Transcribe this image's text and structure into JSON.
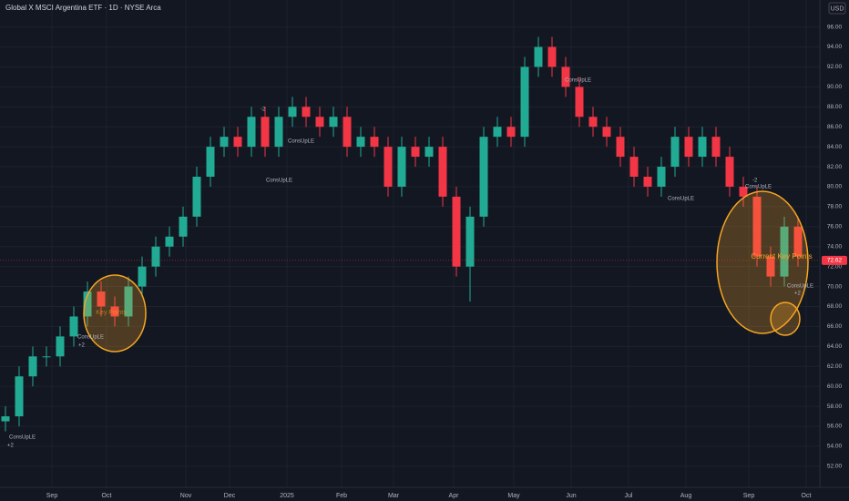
{
  "chart_data": {
    "type": "candlestick",
    "title": "Global X MSCI Argentina ETF · 1D · NYSE Arca",
    "currency": "USD",
    "last_price": 72.62,
    "last_price_label": "72.62",
    "annotations": [
      "Current Key Points",
      "Key Points",
      "ConsUpLE",
      "+2",
      "-2"
    ],
    "up_color": "#22ab94",
    "down_color": "#f23645",
    "grid": true,
    "xlim": [
      0,
      300
    ],
    "xticks": [
      {
        "value": 19,
        "label": "Sep"
      },
      {
        "value": 39,
        "label": "Oct"
      },
      {
        "value": 68,
        "label": "Nov"
      },
      {
        "value": 84,
        "label": "Dec"
      },
      {
        "value": 105,
        "label": "2025"
      },
      {
        "value": 125,
        "label": "Feb"
      },
      {
        "value": 144,
        "label": "Mar"
      },
      {
        "value": 166,
        "label": "Apr"
      },
      {
        "value": 188,
        "label": "May"
      },
      {
        "value": 209,
        "label": "Jun"
      },
      {
        "value": 230,
        "label": "Jul"
      },
      {
        "value": 251,
        "label": "Aug"
      },
      {
        "value": 274,
        "label": "Sep"
      },
      {
        "value": 295,
        "label": "Oct"
      }
    ],
    "ylim": [
      50.8,
      98.7
    ],
    "yticks": [
      {
        "value": 52,
        "label": "52.00"
      },
      {
        "value": 54,
        "label": "54.00"
      },
      {
        "value": 56,
        "label": "56.00"
      },
      {
        "value": 58,
        "label": "58.00"
      },
      {
        "value": 60,
        "label": "60.00"
      },
      {
        "value": 62,
        "label": "62.00"
      },
      {
        "value": 64,
        "label": "64.00"
      },
      {
        "value": 66,
        "label": "66.00"
      },
      {
        "value": 68,
        "label": "68.00"
      },
      {
        "value": 70,
        "label": "70.00"
      },
      {
        "value": 72,
        "label": "72.00"
      },
      {
        "value": 74,
        "label": "74.00"
      },
      {
        "value": 76,
        "label": "76.00"
      },
      {
        "value": 78,
        "label": "78.00"
      },
      {
        "value": 80,
        "label": "80.00"
      },
      {
        "value": 82,
        "label": "82.00"
      },
      {
        "value": 84,
        "label": "84.00"
      },
      {
        "value": 86,
        "label": "86.00"
      },
      {
        "value": 88,
        "label": "88.00"
      },
      {
        "value": 90,
        "label": "90.00"
      },
      {
        "value": 92,
        "label": "92.00"
      },
      {
        "value": 94,
        "label": "94.00"
      },
      {
        "value": 96,
        "label": "96.00"
      }
    ],
    "x": [
      2,
      7,
      12,
      17,
      22,
      27,
      32,
      37,
      42,
      47,
      52,
      57,
      62,
      67,
      72,
      77,
      82,
      87,
      92,
      97,
      102,
      107,
      112,
      117,
      122,
      127,
      132,
      137,
      142,
      147,
      152,
      157,
      162,
      167,
      172,
      177,
      182,
      187,
      192,
      197,
      202,
      207,
      212,
      217,
      222,
      227,
      232,
      237,
      242,
      247,
      252,
      257,
      262,
      267,
      272,
      277,
      282,
      287,
      292
    ],
    "open": [
      56.5,
      57,
      61,
      63,
      63,
      65,
      67,
      69.5,
      68,
      67,
      70,
      72,
      74,
      75,
      77,
      81,
      84,
      85,
      84,
      87,
      84,
      87,
      88,
      87,
      86,
      87,
      84,
      85,
      84,
      80,
      84,
      83,
      84,
      79,
      72,
      77,
      85,
      86,
      85,
      92,
      94,
      92,
      90,
      87,
      86,
      85,
      83,
      81,
      80,
      82,
      85,
      83,
      85,
      83,
      80,
      79,
      73,
      71,
      76
    ],
    "high": [
      58,
      62,
      64,
      64,
      66,
      68,
      70.5,
      70.5,
      69,
      71,
      73,
      75,
      76,
      78,
      82,
      85,
      86,
      86,
      88,
      88,
      88,
      89,
      89,
      88,
      88,
      88,
      86,
      86,
      85,
      85,
      85,
      85,
      85,
      80,
      78,
      86,
      87,
      87,
      93,
      95,
      95,
      93,
      91,
      88,
      87,
      86,
      84,
      82,
      83,
      86,
      86,
      86,
      86,
      84,
      81,
      80,
      74,
      77,
      77
    ],
    "low": [
      55.5,
      56,
      60,
      62,
      62,
      64,
      66,
      67,
      66,
      66,
      69,
      71,
      73,
      74,
      76,
      80,
      83,
      83,
      83,
      83,
      83,
      86,
      86,
      85,
      85,
      83,
      83,
      83,
      79,
      79,
      82,
      82,
      78,
      71,
      68.5,
      76,
      84,
      84,
      84,
      91,
      91,
      89,
      86,
      85,
      84,
      82,
      80,
      79,
      79,
      81,
      82,
      82,
      82,
      79,
      78,
      72,
      70,
      70,
      72
    ],
    "close": [
      57,
      61,
      63,
      63,
      65,
      67,
      69.5,
      68,
      67,
      70,
      72,
      74,
      75,
      77,
      81,
      84,
      85,
      84,
      87,
      84,
      87,
      88,
      87,
      86,
      87,
      84,
      85,
      84,
      80,
      84,
      83,
      84,
      79,
      72,
      77,
      85,
      86,
      85,
      92,
      94,
      92,
      90,
      87,
      86,
      85,
      83,
      81,
      80,
      82,
      85,
      83,
      85,
      83,
      80,
      79,
      73,
      71,
      76,
      73
    ]
  }
}
